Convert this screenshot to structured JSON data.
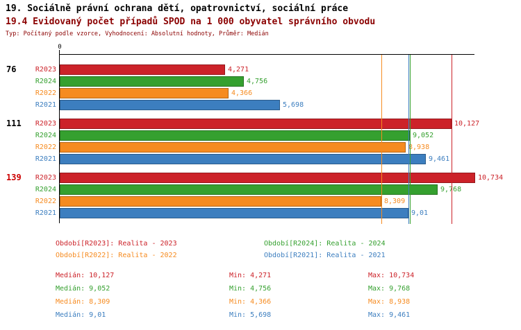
{
  "header": {
    "title1": "19. Sociálně právní ochrana dětí, opatrovnictví, sociální práce",
    "title2": "19.4 Evidovaný počet případů SPOD na 1 000 obyvatel správního obvodu",
    "subtitle": "Typ: Počítaný podle vzorce, Vyhodnocení: Absolutní hodnoty, Průměr: Medián"
  },
  "chart_data": {
    "type": "bar",
    "orientation": "horizontal",
    "value_axis": {
      "origin_label": "0",
      "max": 10.734
    },
    "groups": [
      {
        "label": "76",
        "color": "#000000"
      },
      {
        "label": "111",
        "color": "#000000"
      },
      {
        "label": "139",
        "color": "#cc0000"
      }
    ],
    "series": [
      {
        "name": "R2023",
        "color": "#cc2229",
        "legend": "Období[R2023]: Realita - 2023",
        "values": [
          4.271,
          10.127,
          10.734
        ],
        "value_labels": [
          "4,271",
          "10,127",
          "10,734"
        ],
        "median": 10.127,
        "stats": {
          "median": "Medián: 10,127",
          "min": "Min: 4,271",
          "max": "Max: 10,734"
        }
      },
      {
        "name": "R2024",
        "color": "#35a02f",
        "legend": "Období[R2024]: Realita - 2024",
        "values": [
          4.756,
          9.052,
          9.768
        ],
        "value_labels": [
          "4,756",
          "9,052",
          "9,768"
        ],
        "median": 9.052,
        "stats": {
          "median": "Medián: 9,052",
          "min": "Min: 4,756",
          "max": "Max: 9,768"
        }
      },
      {
        "name": "R2022",
        "color": "#f68b20",
        "legend": "Období[R2022]: Realita - 2022",
        "values": [
          4.366,
          8.938,
          8.309
        ],
        "value_labels": [
          "4,366",
          "8,938",
          "8,309"
        ],
        "median": 8.309,
        "stats": {
          "median": "Medián: 8,309",
          "min": "Min: 4,366",
          "max": "Max: 8,938"
        }
      },
      {
        "name": "R2021",
        "color": "#3c7ebf",
        "legend": "Období[R2021]: Realita - 2021",
        "values": [
          5.698,
          9.461,
          9.01
        ],
        "value_labels": [
          "5,698",
          "9,461",
          "9,01"
        ],
        "median": 9.01,
        "stats": {
          "median": "Medián: 9,01",
          "min": "Min: 5,698",
          "max": "Max: 9,461"
        }
      }
    ]
  }
}
